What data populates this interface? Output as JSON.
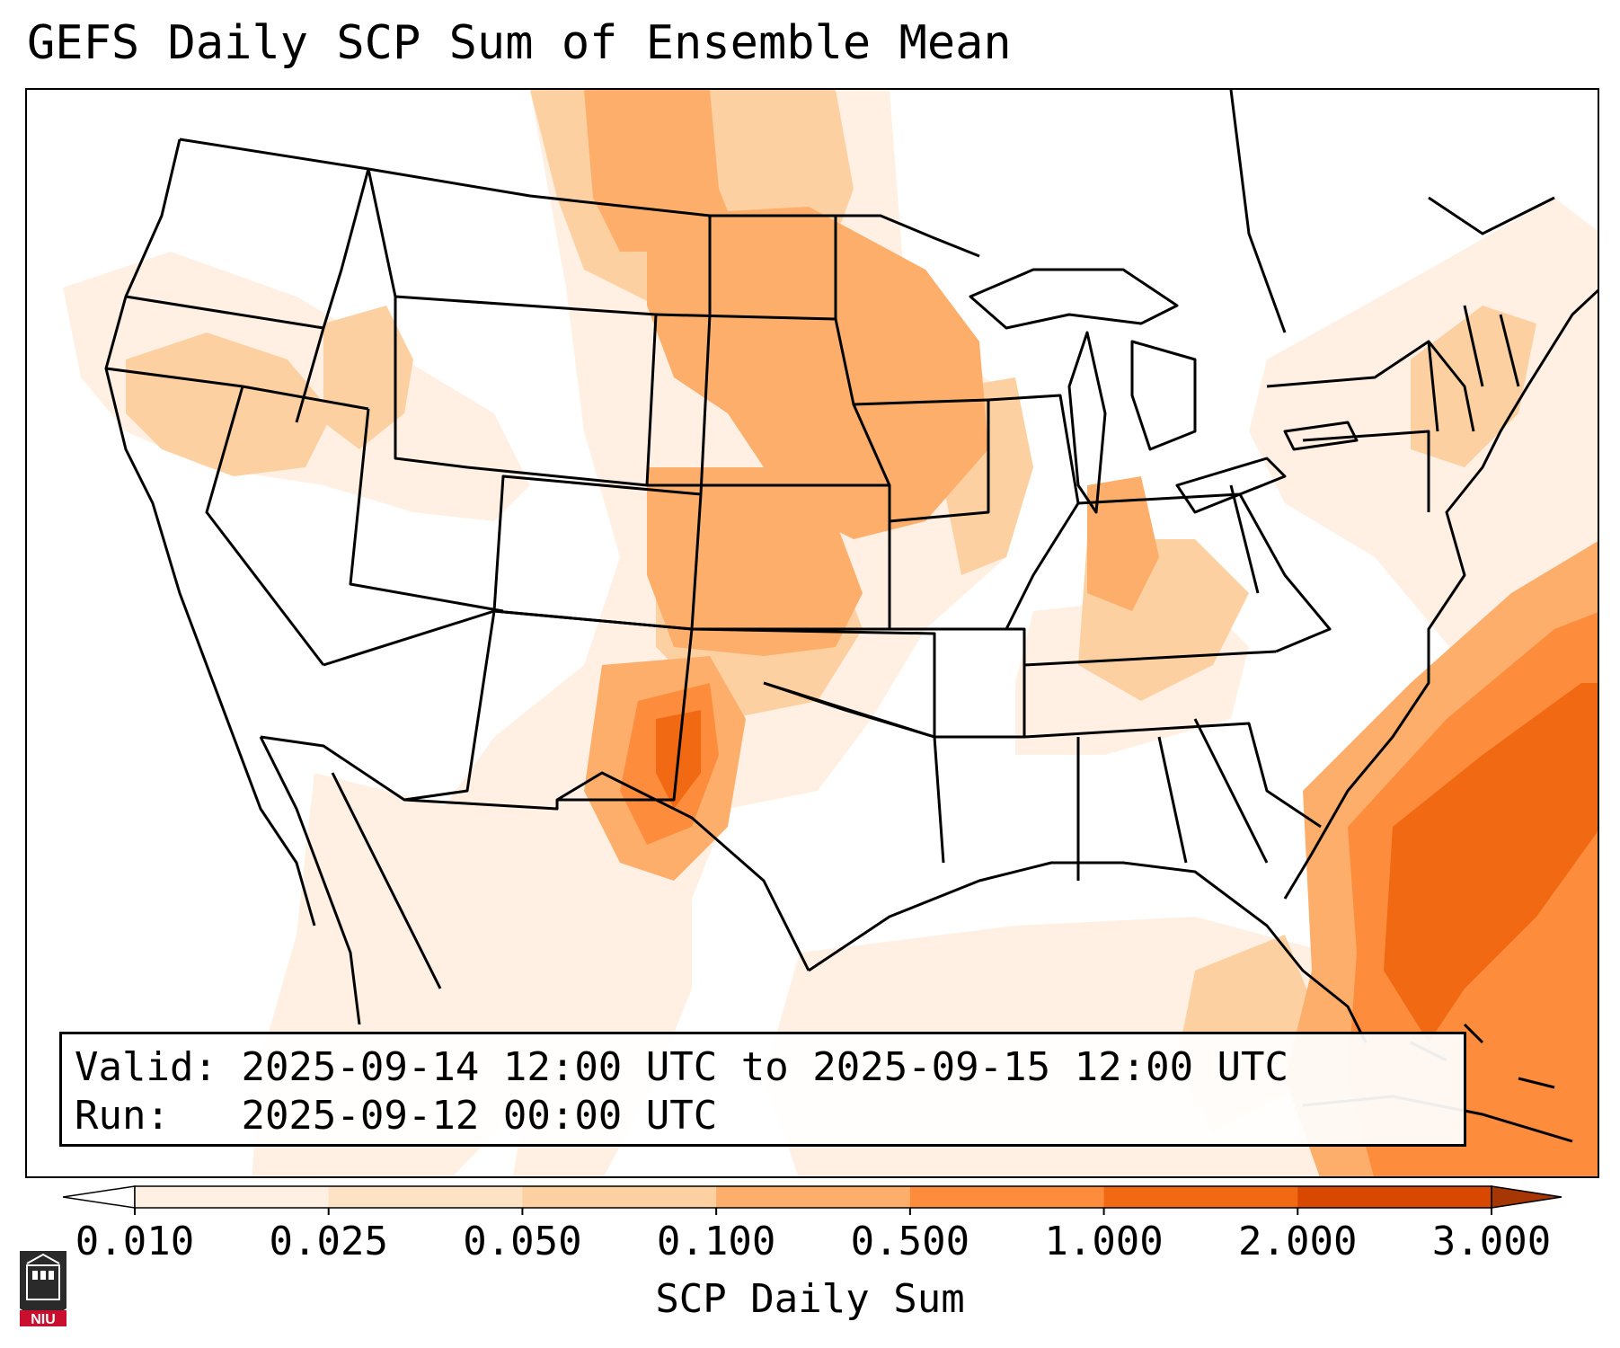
{
  "title": "GEFS Daily SCP Sum of Ensemble Mean",
  "info": {
    "valid_label": "Valid:",
    "valid_value": "2025-09-14 12:00 UTC to 2025-09-15 12:00 UTC",
    "run_label": "Run:",
    "run_value": "2025-09-12 00:00 UTC"
  },
  "colorbar": {
    "label": "SCP Daily Sum",
    "ticks": [
      "0.010",
      "0.025",
      "0.050",
      "0.100",
      "0.500",
      "1.000",
      "2.000",
      "3.000"
    ],
    "colors": [
      "#fff0e3",
      "#fee2c6",
      "#fdd0a2",
      "#fdae6b",
      "#fd8d3c",
      "#f16913",
      "#d94801",
      "#a63603"
    ]
  },
  "logo": {
    "text": "NIU",
    "icon": "niu-university-logo"
  },
  "map": {
    "region": "Contiguous United States",
    "notable_maxima": [
      "Eastern New Mexico / West Texas",
      "Atlantic off the Southeast coast",
      "Northern Plains",
      "Upper Midwest"
    ]
  }
}
